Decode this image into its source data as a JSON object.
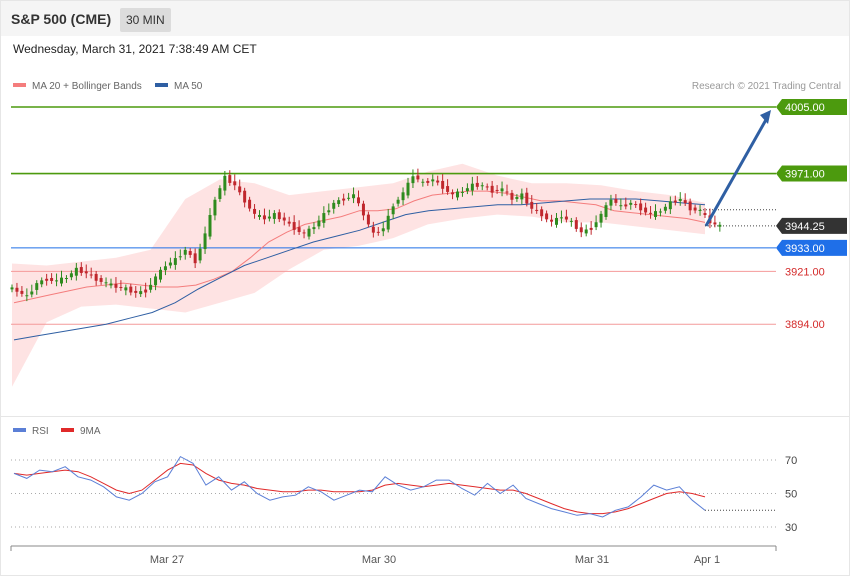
{
  "header": {
    "symbol": "S&P 500 (CME)",
    "timeframe": "30 MIN"
  },
  "datetime": "Wednesday, March 31, 2021 7:38:49 AM CET",
  "legend": [
    {
      "label": "MA 20 + Bollinger Bands",
      "color": "#f47d7d"
    },
    {
      "label": "MA 50",
      "color": "#2f5fa3"
    }
  ],
  "copyright": "Research © 2021 Trading Central",
  "colors": {
    "resistance": "#4c9a0e",
    "support": "#1f6fe8",
    "support_light": "#f49a9a",
    "current": "#333333",
    "bull": "#2e8b1e",
    "bear": "#c0272d",
    "arrow": "#2f5fa3",
    "rsi": "#5b7fd6",
    "rsi_ma": "#e02a2a"
  },
  "chart_data": [
    {
      "type": "candlestick",
      "title": "S&P 500 (CME) 30 MIN",
      "ylim": [
        3870,
        4010
      ],
      "x_tick_labels": [
        "Mar 27",
        "Mar 30",
        "Mar 31",
        "Apr 1"
      ],
      "levels": [
        {
          "value": 4005.0,
          "label": "4005.00",
          "kind": "resistance"
        },
        {
          "value": 3971.0,
          "label": "3971.00",
          "kind": "resistance"
        },
        {
          "value": 3944.25,
          "label": "3944.25",
          "kind": "current"
        },
        {
          "value": 3933.0,
          "label": "3933.00",
          "kind": "support"
        },
        {
          "value": 3921.0,
          "label": "3921.00",
          "kind": "support_light"
        },
        {
          "value": 3894.0,
          "label": "3894.00",
          "kind": "support_light"
        }
      ],
      "price_path": [
        3913,
        3911,
        3908,
        3915,
        3917,
        3916,
        3918,
        3922,
        3920,
        3917,
        3915,
        3913,
        3912,
        3910,
        3911,
        3918,
        3924,
        3927,
        3932,
        3926,
        3940,
        3958,
        3969,
        3965,
        3957,
        3950,
        3948,
        3950,
        3947,
        3943,
        3940,
        3944,
        3950,
        3956,
        3958,
        3960,
        3950,
        3940,
        3943,
        3955,
        3961,
        3970,
        3966,
        3968,
        3964,
        3960,
        3962,
        3965,
        3965,
        3962,
        3963,
        3958,
        3960,
        3953,
        3950,
        3946,
        3949,
        3946,
        3941,
        3943,
        3950,
        3958,
        3954,
        3956,
        3953,
        3950,
        3952,
        3956,
        3958,
        3953,
        3952,
        3946,
        3944
      ],
      "ma20_path": [
        3905,
        3907,
        3909,
        3911,
        3913,
        3914,
        3915,
        3914,
        3913,
        3913,
        3914,
        3917,
        3921,
        3928,
        3936,
        3941,
        3945,
        3947,
        3949,
        3952,
        3952,
        3953,
        3957,
        3960,
        3961,
        3962,
        3962,
        3961,
        3959,
        3957,
        3957,
        3956,
        3955,
        3952,
        3951,
        3950,
        3949,
        3948,
        3946
      ],
      "ma50_path": [
        3886,
        3888,
        3890,
        3892,
        3894,
        3897,
        3900,
        3905,
        3912,
        3918,
        3924,
        3928,
        3932,
        3936,
        3939,
        3942,
        3946,
        3950,
        3952,
        3953,
        3954,
        3955,
        3955,
        3956,
        3957,
        3958,
        3958,
        3958,
        3957,
        3956,
        3955
      ],
      "bollinger": {
        "upper": [
          3925,
          3924,
          3926,
          3928,
          3932,
          3958,
          3968,
          3966,
          3960,
          3962,
          3964,
          3966,
          3972,
          3976,
          3970,
          3966,
          3966,
          3965,
          3962,
          3960,
          3956
        ],
        "lower": [
          3862,
          3895,
          3903,
          3904,
          3902,
          3900,
          3905,
          3910,
          3922,
          3932,
          3934,
          3938,
          3945,
          3948,
          3950,
          3949,
          3946,
          3946,
          3944,
          3942,
          3940
        ]
      },
      "forecast": {
        "from": 3944.25,
        "to": 4005.0
      }
    },
    {
      "type": "line",
      "title": "RSI",
      "ylim": [
        20,
        80
      ],
      "y_ticks": [
        70,
        50,
        30
      ],
      "series": [
        {
          "name": "RSI",
          "values": [
            62,
            59,
            64,
            63,
            66,
            60,
            58,
            54,
            48,
            46,
            50,
            57,
            60,
            72,
            68,
            55,
            60,
            52,
            57,
            50,
            46,
            48,
            49,
            54,
            51,
            46,
            49,
            52,
            51,
            60,
            55,
            52,
            54,
            58,
            58,
            53,
            49,
            56,
            50,
            55,
            47,
            44,
            41,
            39,
            37,
            38,
            36,
            40,
            42,
            48,
            55,
            52,
            54,
            46,
            40
          ]
        },
        {
          "name": "9MA",
          "values": [
            62,
            61,
            62,
            63,
            64,
            63,
            60,
            56,
            52,
            50,
            52,
            58,
            64,
            68,
            67,
            62,
            58,
            56,
            55,
            53,
            52,
            51,
            51,
            52,
            52,
            51,
            51,
            51,
            52,
            55,
            56,
            55,
            54,
            55,
            56,
            55,
            54,
            53,
            52,
            52,
            50,
            47,
            44,
            41,
            39,
            38,
            38,
            39,
            41,
            44,
            47,
            50,
            51,
            50,
            48
          ]
        }
      ]
    }
  ]
}
